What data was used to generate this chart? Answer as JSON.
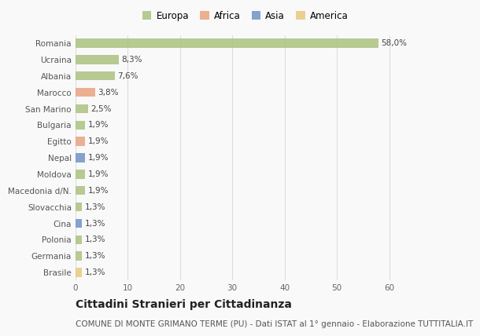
{
  "countries": [
    "Romania",
    "Ucraina",
    "Albania",
    "Marocco",
    "San Marino",
    "Bulgaria",
    "Egitto",
    "Nepal",
    "Moldova",
    "Macedonia d/N.",
    "Slovacchia",
    "Cina",
    "Polonia",
    "Germania",
    "Brasile"
  ],
  "values": [
    58.0,
    8.3,
    7.6,
    3.8,
    2.5,
    1.9,
    1.9,
    1.9,
    1.9,
    1.9,
    1.3,
    1.3,
    1.3,
    1.3,
    1.3
  ],
  "continents": [
    "Europa",
    "Europa",
    "Europa",
    "Africa",
    "Europa",
    "Europa",
    "Africa",
    "Asia",
    "Europa",
    "Europa",
    "Europa",
    "Asia",
    "Europa",
    "Europa",
    "America"
  ],
  "labels": [
    "58,0%",
    "8,3%",
    "7,6%",
    "3,8%",
    "2,5%",
    "1,9%",
    "1,9%",
    "1,9%",
    "1,9%",
    "1,9%",
    "1,3%",
    "1,3%",
    "1,3%",
    "1,3%",
    "1,3%"
  ],
  "continent_colors": {
    "Europa": "#a8c07a",
    "Africa": "#e8a07a",
    "Asia": "#6b8fc4",
    "America": "#e8c87a"
  },
  "legend_entries": [
    "Europa",
    "Africa",
    "Asia",
    "America"
  ],
  "legend_colors": [
    "#a8c07a",
    "#e8a07a",
    "#6b8fc4",
    "#e8c87a"
  ],
  "title": "Cittadini Stranieri per Cittadinanza",
  "subtitle": "COMUNE DI MONTE GRIMANO TERME (PU) - Dati ISTAT al 1° gennaio - Elaborazione TUTTITALIA.IT",
  "xlim": [
    0,
    65
  ],
  "xticks": [
    0,
    10,
    20,
    30,
    40,
    50,
    60
  ],
  "background_color": "#f9f9f9",
  "grid_color": "#dddddd",
  "bar_alpha": 0.82,
  "title_fontsize": 10,
  "subtitle_fontsize": 7.5,
  "label_fontsize": 7.5,
  "tick_fontsize": 7.5,
  "legend_fontsize": 8.5
}
